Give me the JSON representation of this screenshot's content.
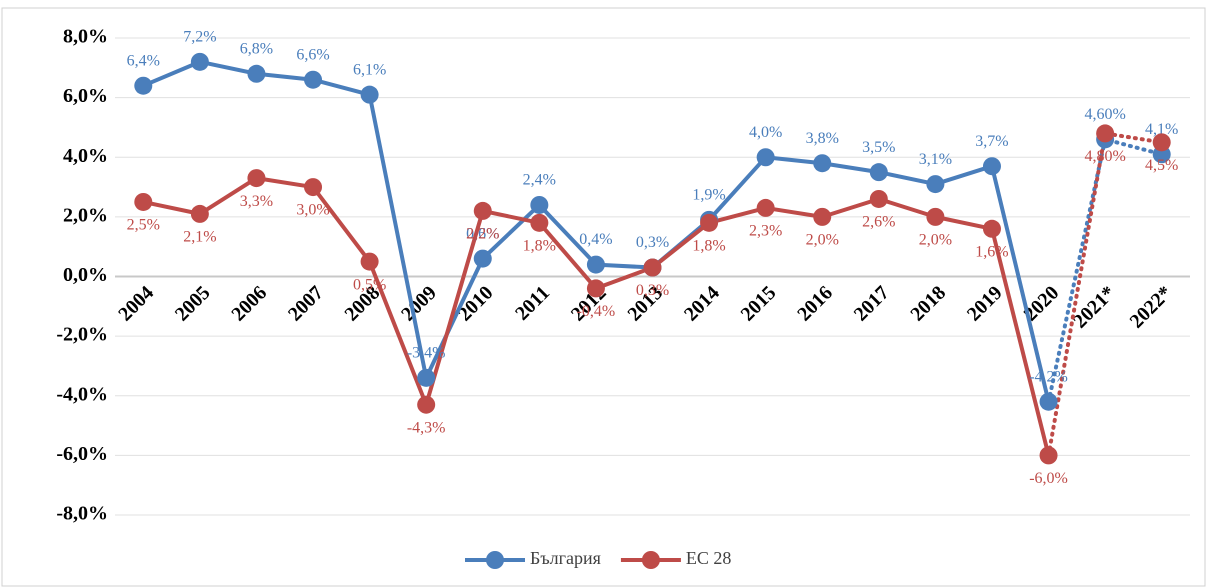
{
  "chart_data": {
    "type": "line",
    "categories": [
      "2004",
      "2005",
      "2006",
      "2007",
      "2008",
      "2009",
      "2010",
      "2011",
      "2012",
      "2013",
      "2014",
      "2015",
      "2016",
      "2017",
      "2018",
      "2019",
      "2020",
      "2021*",
      "2022*"
    ],
    "series": [
      {
        "name": "България",
        "color": "#4a7ebb",
        "values": [
          6.4,
          7.2,
          6.8,
          6.6,
          6.1,
          -3.4,
          0.6,
          2.4,
          0.4,
          0.3,
          1.9,
          4.0,
          3.8,
          3.5,
          3.1,
          3.7,
          -4.2,
          4.6,
          4.1
        ],
        "value_labels": [
          "6,4%",
          "7,2%",
          "6,8%",
          "6,6%",
          "6,1%",
          "-3,4%",
          "0,6%",
          "2,4%",
          "0,4%",
          "0,3%",
          "1,9%",
          "4,0%",
          "3,8%",
          "3,5%",
          "3,1%",
          "3,7%",
          "-4,2%",
          "4,60%",
          "4,1%"
        ]
      },
      {
        "name": "ЕС 28",
        "color": "#be4b48",
        "values": [
          2.5,
          2.1,
          3.3,
          3.0,
          0.5,
          -4.3,
          2.2,
          1.8,
          -0.4,
          0.3,
          1.8,
          2.3,
          2.0,
          2.6,
          2.0,
          1.6,
          -6.0,
          4.8,
          4.5
        ],
        "value_labels": [
          "2,5%",
          "2,1%",
          "3,3%",
          "3,0%",
          "0,5%",
          "-4,3%",
          "2,2%",
          "1,8%",
          "-0,4%",
          "0,3%",
          "1,8%",
          "2,3%",
          "2,0%",
          "2,6%",
          "2,0%",
          "1,6%",
          "-6,0%",
          "4,80%",
          "4,5%"
        ]
      }
    ],
    "ylim": [
      -8,
      8
    ],
    "yticks": [
      {
        "value": -8,
        "label": "-8,0%"
      },
      {
        "value": -6,
        "label": "-6,0%"
      },
      {
        "value": -4,
        "label": "-4,0%"
      },
      {
        "value": -2,
        "label": "-2,0%"
      },
      {
        "value": 0,
        "label": "0,0%"
      },
      {
        "value": 2,
        "label": "2,0%"
      },
      {
        "value": 4,
        "label": "4,0%"
      },
      {
        "value": 6,
        "label": "6,0%"
      },
      {
        "value": 8,
        "label": "8,0%"
      }
    ],
    "grid": true,
    "legend": "bottom"
  }
}
